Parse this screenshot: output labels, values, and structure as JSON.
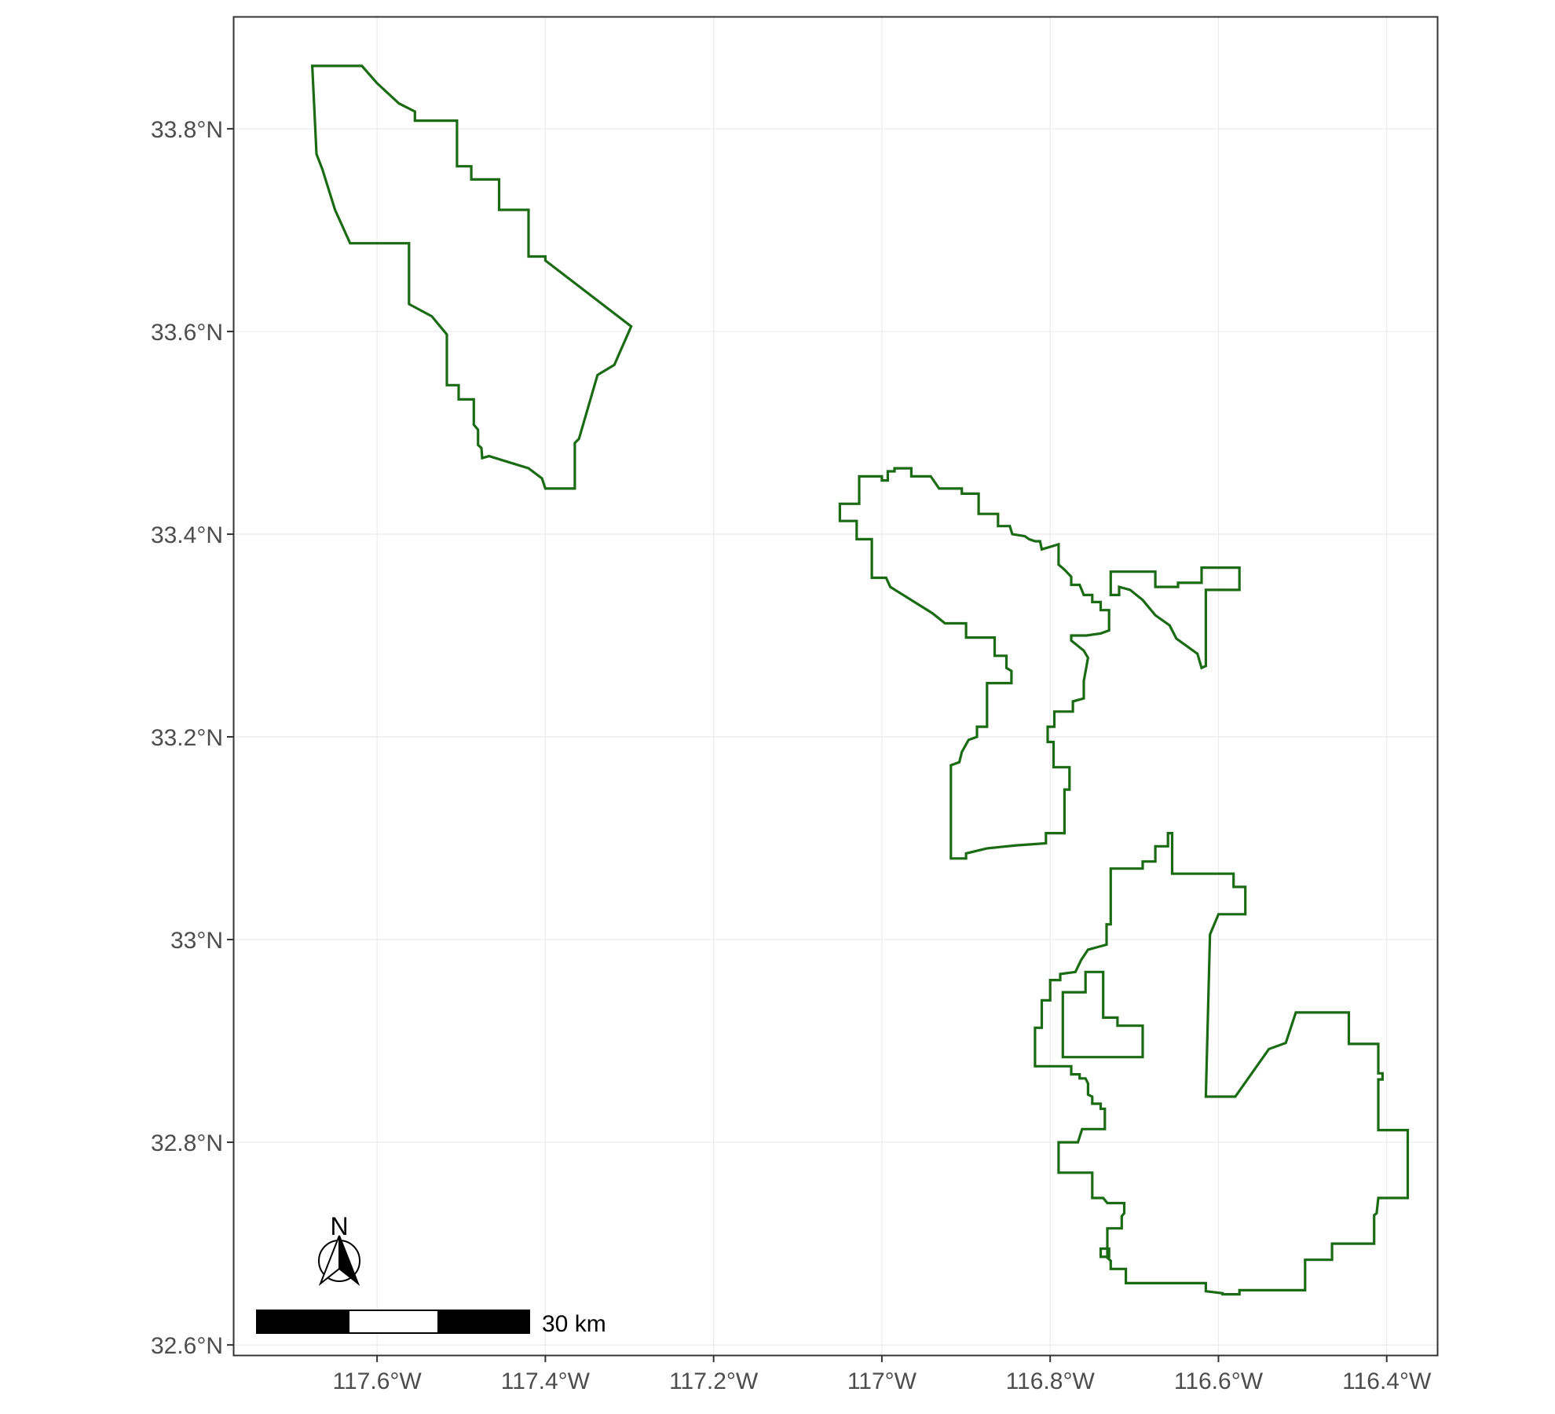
{
  "map": {
    "x_ticks": [
      {
        "value": -117.6,
        "label": "117.6°W"
      },
      {
        "value": -117.4,
        "label": "117.4°W"
      },
      {
        "value": -117.2,
        "label": "117.2°W"
      },
      {
        "value": -117.0,
        "label": "117°W"
      },
      {
        "value": -116.8,
        "label": "116.8°W"
      },
      {
        "value": -116.6,
        "label": "116.6°W"
      },
      {
        "value": -116.4,
        "label": "116.4°W"
      }
    ],
    "y_ticks": [
      {
        "value": 33.8,
        "label": "33.8°N"
      },
      {
        "value": 33.6,
        "label": "33.6°N"
      },
      {
        "value": 33.4,
        "label": "33.4°N"
      },
      {
        "value": 33.2,
        "label": "33.2°N"
      },
      {
        "value": 33.0,
        "label": "33°N"
      },
      {
        "value": 32.8,
        "label": "32.8°N"
      },
      {
        "value": 32.6,
        "label": "32.6°N"
      }
    ],
    "lon_range": [
      -117.77,
      -116.34
    ],
    "lat_range": [
      32.59,
      33.91
    ],
    "boundary_color": "#1a6b14",
    "grid": true,
    "polygons": [
      {
        "region": "northwest",
        "coords": [
          [
            -117.677,
            33.862
          ],
          [
            -117.618,
            33.862
          ],
          [
            -117.6,
            33.845
          ],
          [
            -117.574,
            33.825
          ],
          [
            -117.555,
            33.817
          ],
          [
            -117.555,
            33.808
          ],
          [
            -117.505,
            33.808
          ],
          [
            -117.505,
            33.763
          ],
          [
            -117.488,
            33.763
          ],
          [
            -117.488,
            33.75
          ],
          [
            -117.455,
            33.75
          ],
          [
            -117.455,
            33.72
          ],
          [
            -117.42,
            33.72
          ],
          [
            -117.42,
            33.674
          ],
          [
            -117.4,
            33.674
          ],
          [
            -117.4,
            33.67
          ],
          [
            -117.298,
            33.605
          ],
          [
            -117.318,
            33.567
          ],
          [
            -117.338,
            33.557
          ],
          [
            -117.36,
            33.494
          ],
          [
            -117.365,
            33.49
          ],
          [
            -117.365,
            33.445
          ],
          [
            -117.4,
            33.445
          ],
          [
            -117.404,
            33.455
          ],
          [
            -117.42,
            33.465
          ],
          [
            -117.467,
            33.477
          ],
          [
            -117.475,
            33.475
          ],
          [
            -117.476,
            33.485
          ],
          [
            -117.48,
            33.488
          ],
          [
            -117.48,
            33.503
          ],
          [
            -117.485,
            33.508
          ],
          [
            -117.485,
            33.533
          ],
          [
            -117.503,
            33.533
          ],
          [
            -117.503,
            33.547
          ],
          [
            -117.517,
            33.547
          ],
          [
            -117.517,
            33.597
          ],
          [
            -117.535,
            33.615
          ],
          [
            -117.562,
            33.627
          ],
          [
            -117.562,
            33.687
          ],
          [
            -117.632,
            33.687
          ],
          [
            -117.65,
            33.72
          ],
          [
            -117.665,
            33.76
          ],
          [
            -117.672,
            33.775
          ],
          [
            -117.677,
            33.862
          ]
        ]
      },
      {
        "region": "central",
        "coords": [
          [
            -117.05,
            33.43
          ],
          [
            -117.05,
            33.413
          ],
          [
            -117.03,
            33.413
          ],
          [
            -117.03,
            33.395
          ],
          [
            -117.012,
            33.395
          ],
          [
            -117.012,
            33.357
          ],
          [
            -116.995,
            33.357
          ],
          [
            -116.99,
            33.348
          ],
          [
            -116.94,
            33.322
          ],
          [
            -116.925,
            33.312
          ],
          [
            -116.9,
            33.312
          ],
          [
            -116.9,
            33.298
          ],
          [
            -116.866,
            33.298
          ],
          [
            -116.866,
            33.28
          ],
          [
            -116.852,
            33.28
          ],
          [
            -116.852,
            33.268
          ],
          [
            -116.846,
            33.265
          ],
          [
            -116.846,
            33.253
          ],
          [
            -116.875,
            33.253
          ],
          [
            -116.875,
            33.21
          ],
          [
            -116.887,
            33.21
          ],
          [
            -116.887,
            33.2
          ],
          [
            -116.897,
            33.197
          ],
          [
            -116.905,
            33.185
          ],
          [
            -116.908,
            33.175
          ],
          [
            -116.918,
            33.172
          ],
          [
            -116.918,
            33.08
          ],
          [
            -116.9,
            33.08
          ],
          [
            -116.9,
            33.085
          ],
          [
            -116.875,
            33.09
          ],
          [
            -116.84,
            33.093
          ],
          [
            -116.805,
            33.095
          ],
          [
            -116.805,
            33.105
          ],
          [
            -116.783,
            33.105
          ],
          [
            -116.783,
            33.148
          ],
          [
            -116.777,
            33.148
          ],
          [
            -116.777,
            33.17
          ],
          [
            -116.796,
            33.17
          ],
          [
            -116.796,
            33.195
          ],
          [
            -116.803,
            33.195
          ],
          [
            -116.803,
            33.21
          ],
          [
            -116.795,
            33.21
          ],
          [
            -116.795,
            33.225
          ],
          [
            -116.773,
            33.225
          ],
          [
            -116.773,
            33.235
          ],
          [
            -116.76,
            33.238
          ],
          [
            -116.76,
            33.255
          ],
          [
            -116.755,
            33.278
          ],
          [
            -116.76,
            33.285
          ],
          [
            -116.775,
            33.295
          ],
          [
            -116.775,
            33.3
          ],
          [
            -116.757,
            33.3
          ],
          [
            -116.74,
            33.302
          ],
          [
            -116.73,
            33.305
          ],
          [
            -116.73,
            33.325
          ],
          [
            -116.74,
            33.325
          ],
          [
            -116.74,
            33.333
          ],
          [
            -116.75,
            33.333
          ],
          [
            -116.75,
            33.34
          ],
          [
            -116.76,
            33.34
          ],
          [
            -116.765,
            33.35
          ],
          [
            -116.775,
            33.35
          ],
          [
            -116.775,
            33.358
          ],
          [
            -116.783,
            33.365
          ],
          [
            -116.79,
            33.37
          ],
          [
            -116.79,
            33.39
          ],
          [
            -116.81,
            33.385
          ],
          [
            -116.812,
            33.393
          ],
          [
            -116.818,
            33.393
          ],
          [
            -116.825,
            33.395
          ],
          [
            -116.83,
            33.398
          ],
          [
            -116.845,
            33.4
          ],
          [
            -116.848,
            33.408
          ],
          [
            -116.862,
            33.408
          ],
          [
            -116.862,
            33.42
          ],
          [
            -116.885,
            33.42
          ],
          [
            -116.885,
            33.44
          ],
          [
            -116.905,
            33.44
          ],
          [
            -116.905,
            33.445
          ],
          [
            -116.932,
            33.445
          ],
          [
            -116.942,
            33.457
          ],
          [
            -116.965,
            33.457
          ],
          [
            -116.965,
            33.465
          ],
          [
            -116.985,
            33.465
          ],
          [
            -116.985,
            33.462
          ],
          [
            -116.993,
            33.462
          ],
          [
            -116.993,
            33.453
          ],
          [
            -117.0,
            33.453
          ],
          [
            -117.0,
            33.457
          ],
          [
            -117.027,
            33.457
          ],
          [
            -117.027,
            33.43
          ],
          [
            -117.05,
            33.43
          ]
        ]
      },
      {
        "region": "central-east",
        "coords": [
          [
            -116.728,
            33.363
          ],
          [
            -116.675,
            33.363
          ],
          [
            -116.675,
            33.348
          ],
          [
            -116.648,
            33.348
          ],
          [
            -116.648,
            33.352
          ],
          [
            -116.62,
            33.352
          ],
          [
            -116.62,
            33.367
          ],
          [
            -116.575,
            33.367
          ],
          [
            -116.575,
            33.345
          ],
          [
            -116.615,
            33.345
          ],
          [
            -116.615,
            33.27
          ],
          [
            -116.62,
            33.268
          ],
          [
            -116.625,
            33.282
          ],
          [
            -116.65,
            33.297
          ],
          [
            -116.658,
            33.31
          ],
          [
            -116.675,
            33.32
          ],
          [
            -116.69,
            33.335
          ],
          [
            -116.705,
            33.345
          ],
          [
            -116.718,
            33.348
          ],
          [
            -116.718,
            33.34
          ],
          [
            -116.728,
            33.34
          ],
          [
            -116.728,
            33.363
          ]
        ]
      },
      {
        "region": "southeast",
        "coords": [
          [
            -116.728,
            33.07
          ],
          [
            -116.69,
            33.07
          ],
          [
            -116.69,
            33.077
          ],
          [
            -116.675,
            33.077
          ],
          [
            -116.675,
            33.092
          ],
          [
            -116.66,
            33.092
          ],
          [
            -116.66,
            33.105
          ],
          [
            -116.655,
            33.105
          ],
          [
            -116.655,
            33.065
          ],
          [
            -116.582,
            33.065
          ],
          [
            -116.582,
            33.052
          ],
          [
            -116.568,
            33.052
          ],
          [
            -116.568,
            33.025
          ],
          [
            -116.6,
            33.025
          ],
          [
            -116.61,
            33.005
          ],
          [
            -116.615,
            32.845
          ],
          [
            -116.58,
            32.845
          ],
          [
            -116.54,
            32.892
          ],
          [
            -116.52,
            32.898
          ],
          [
            -116.508,
            32.928
          ],
          [
            -116.445,
            32.928
          ],
          [
            -116.445,
            32.897
          ],
          [
            -116.41,
            32.897
          ],
          [
            -116.41,
            32.868
          ],
          [
            -116.405,
            32.868
          ],
          [
            -116.405,
            32.862
          ],
          [
            -116.41,
            32.862
          ],
          [
            -116.41,
            32.812
          ],
          [
            -116.375,
            32.812
          ],
          [
            -116.375,
            32.745
          ],
          [
            -116.41,
            32.745
          ],
          [
            -116.412,
            32.73
          ],
          [
            -116.415,
            32.728
          ],
          [
            -116.415,
            32.7
          ],
          [
            -116.465,
            32.7
          ],
          [
            -116.465,
            32.684
          ],
          [
            -116.497,
            32.684
          ],
          [
            -116.497,
            32.654
          ],
          [
            -116.575,
            32.654
          ],
          [
            -116.575,
            32.65
          ],
          [
            -116.595,
            32.65
          ],
          [
            -116.595,
            32.651
          ],
          [
            -116.615,
            32.653
          ],
          [
            -116.615,
            32.661
          ],
          [
            -116.71,
            32.661
          ],
          [
            -116.71,
            32.675
          ],
          [
            -116.728,
            32.675
          ],
          [
            -116.728,
            32.683
          ],
          [
            -116.732,
            32.686
          ],
          [
            -116.732,
            32.715
          ],
          [
            -116.715,
            32.715
          ],
          [
            -116.715,
            32.727
          ],
          [
            -116.712,
            32.73
          ],
          [
            -116.712,
            32.74
          ],
          [
            -116.732,
            32.74
          ],
          [
            -116.737,
            32.745
          ],
          [
            -116.75,
            32.745
          ],
          [
            -116.75,
            32.77
          ],
          [
            -116.79,
            32.77
          ],
          [
            -116.79,
            32.8
          ],
          [
            -116.767,
            32.8
          ],
          [
            -116.762,
            32.813
          ],
          [
            -116.735,
            32.813
          ],
          [
            -116.735,
            32.833
          ],
          [
            -116.74,
            32.833
          ],
          [
            -116.74,
            32.838
          ],
          [
            -116.75,
            32.838
          ],
          [
            -116.75,
            32.845
          ],
          [
            -116.755,
            32.847
          ],
          [
            -116.755,
            32.858
          ],
          [
            -116.758,
            32.863
          ],
          [
            -116.765,
            32.863
          ],
          [
            -116.765,
            32.867
          ],
          [
            -116.775,
            32.867
          ],
          [
            -116.775,
            32.875
          ],
          [
            -116.818,
            32.875
          ],
          [
            -116.818,
            32.913
          ],
          [
            -116.81,
            32.913
          ],
          [
            -116.81,
            32.94
          ],
          [
            -116.8,
            32.94
          ],
          [
            -116.8,
            32.96
          ],
          [
            -116.788,
            32.96
          ],
          [
            -116.788,
            32.966
          ],
          [
            -116.77,
            32.968
          ],
          [
            -116.763,
            32.98
          ],
          [
            -116.755,
            32.99
          ],
          [
            -116.733,
            32.995
          ],
          [
            -116.733,
            33.015
          ],
          [
            -116.728,
            33.015
          ],
          [
            -116.728,
            33.07
          ]
        ]
      },
      {
        "region": "southeast-inner",
        "coords": [
          [
            -116.785,
            32.889
          ],
          [
            -116.785,
            32.948
          ],
          [
            -116.758,
            32.948
          ],
          [
            -116.758,
            32.968
          ],
          [
            -116.737,
            32.968
          ],
          [
            -116.737,
            32.923
          ],
          [
            -116.72,
            32.923
          ],
          [
            -116.72,
            32.915
          ],
          [
            -116.69,
            32.915
          ],
          [
            -116.69,
            32.884
          ],
          [
            -116.785,
            32.884
          ],
          [
            -116.785,
            32.889
          ]
        ]
      },
      {
        "region": "small-square",
        "coords": [
          [
            -116.74,
            32.695
          ],
          [
            -116.73,
            32.695
          ],
          [
            -116.73,
            32.687
          ],
          [
            -116.74,
            32.687
          ],
          [
            -116.74,
            32.695
          ]
        ]
      }
    ],
    "north_arrow_label": "N",
    "scale_bar_label": "30 km"
  }
}
